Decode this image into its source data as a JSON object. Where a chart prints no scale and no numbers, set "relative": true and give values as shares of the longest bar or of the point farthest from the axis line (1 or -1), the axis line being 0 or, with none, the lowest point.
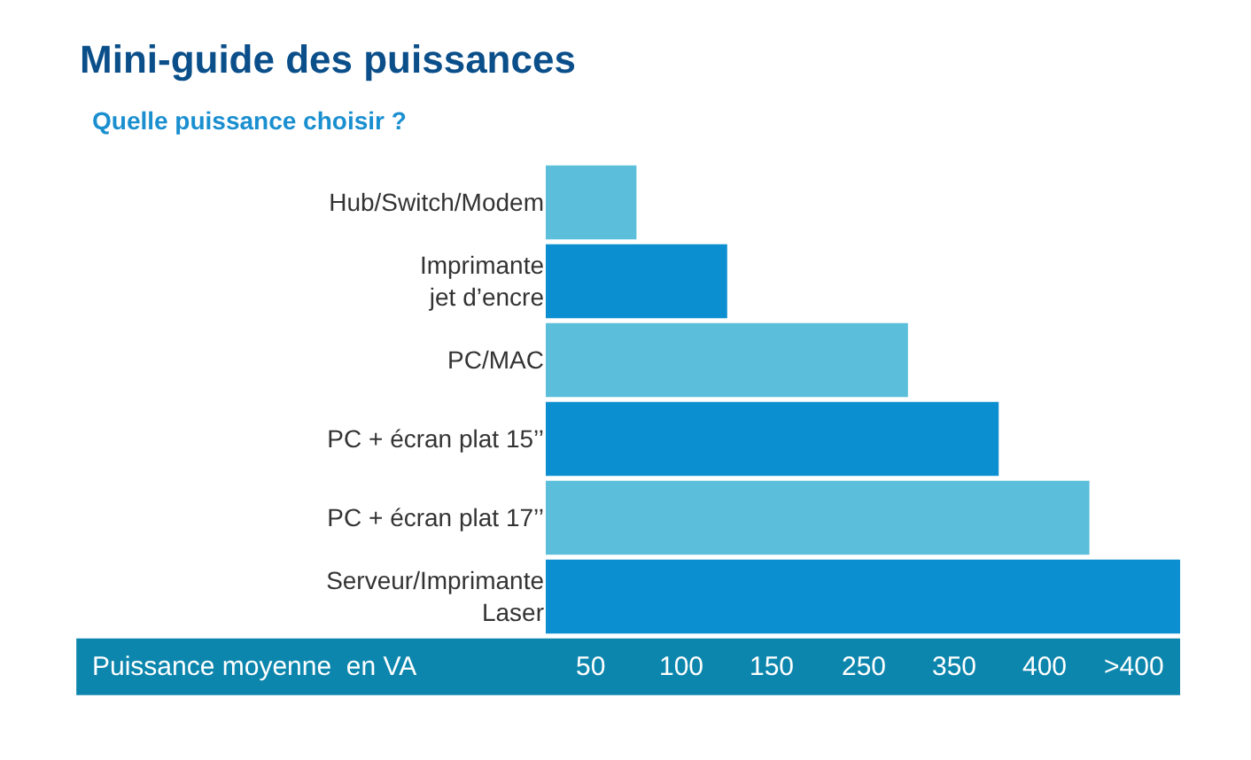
{
  "chart_data": {
    "type": "bar",
    "orientation": "horizontal",
    "relative": true,
    "title": "Mini-guide des puissances",
    "subtitle": "Quelle puissance choisir ?",
    "xlabel": "Puissance moyenne  en VA",
    "categories": [
      "Hub/Switch/Modem",
      "Imprimante\njet d’encre",
      "PC/MAC",
      "PC + écran plat 15’’",
      "PC + écran plat 17’’",
      "Serveur/Imprimante\nLaser"
    ],
    "values": [
      0.143,
      0.286,
      0.571,
      0.714,
      0.857,
      1
    ],
    "colors": [
      "#5bbfdb",
      "#0b8fd0",
      "#5bbfdb",
      "#0b8fd0",
      "#5bbfdb",
      "#0b8fd0"
    ],
    "annotations": [
      "50",
      "100",
      "150",
      "250",
      "350",
      "400",
      ">400"
    ],
    "legend": false
  }
}
